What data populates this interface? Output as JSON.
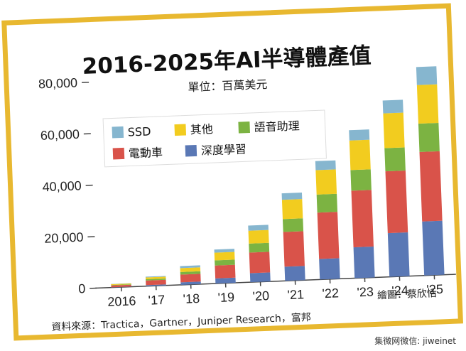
{
  "chart_data": {
    "type": "bar",
    "stacked": true,
    "title": "2016-2025年AI半導體產值",
    "subtitle": "單位：百萬美元",
    "categories": [
      "2016",
      "'17",
      "'18",
      "'19",
      "'20",
      "'21",
      "'22",
      "'23",
      "'24",
      "'25"
    ],
    "series": [
      {
        "name": "深度學習",
        "color": "#5a78b5",
        "values": [
          100,
          400,
          1000,
          2000,
          3500,
          5500,
          8000,
          12000,
          17000,
          21000
        ]
      },
      {
        "name": "電動車",
        "color": "#d9534a",
        "values": [
          700,
          1800,
          3000,
          5000,
          8000,
          13500,
          18000,
          22000,
          24000,
          27000
        ]
      },
      {
        "name": "語音助理",
        "color": "#7cb342",
        "values": [
          200,
          500,
          1000,
          2000,
          3500,
          5000,
          7000,
          8000,
          9000,
          11000
        ]
      },
      {
        "name": "其他",
        "color": "#f2cc1f",
        "values": [
          300,
          700,
          1500,
          3000,
          5000,
          7500,
          9500,
          11500,
          13500,
          15000
        ]
      },
      {
        "name": "SSD",
        "color": "#86b6cf",
        "values": [
          100,
          300,
          800,
          1200,
          2000,
          2500,
          3500,
          4000,
          5000,
          7000
        ]
      }
    ],
    "ylim": [
      0,
      80000
    ],
    "yticks": [
      0,
      20000,
      40000,
      60000,
      80000
    ],
    "ytick_labels": [
      "0",
      "20,000",
      "40,000",
      "60,000",
      "80,000"
    ],
    "legend_position": "top-left",
    "grid": false
  },
  "legend_order": [
    "SSD",
    "其他",
    "語音助理",
    "電動車",
    "深度學習"
  ],
  "source_note": "資料來源：Tractica，Gartner，Juniper Research，富邦",
  "credit": "繪圖：蔡欣恬",
  "watermark": "集微网微信: jiweinet",
  "colors": {
    "frame": "#e8b830",
    "card": "#ffffff"
  }
}
